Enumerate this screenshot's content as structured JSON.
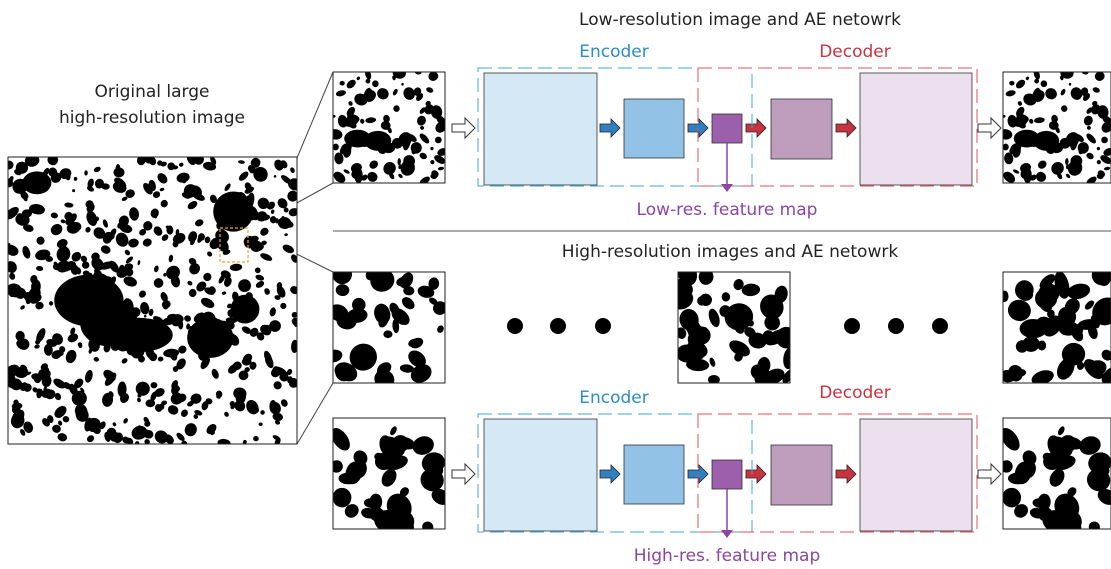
{
  "original": {
    "label_lines": [
      "Original large",
      "high-resolution image"
    ]
  },
  "low_res": {
    "title": "Low-resolution image and AE netowrk",
    "encoder": "Encoder",
    "decoder": "Decoder",
    "feature_map": "Low-res. feature map"
  },
  "high_res": {
    "title": "High-resolution images and AE netowrk",
    "encoder": "Encoder",
    "decoder": "Decoder",
    "feature_map": "High-res. feature map"
  }
}
